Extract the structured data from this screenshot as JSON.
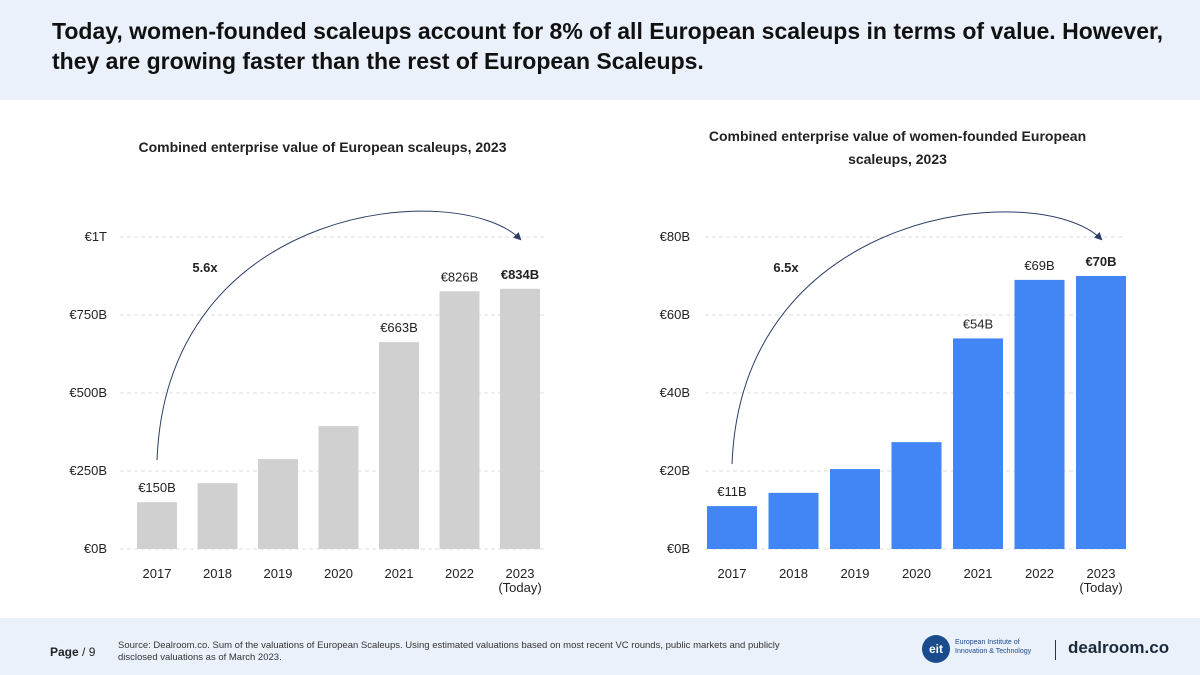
{
  "header": {
    "title": "Today, women-founded scaleups account for 8% of all European scaleups in terms of value. However, they are growing faster than the rest of European Scaleups."
  },
  "chart_data": [
    {
      "type": "bar",
      "title": "Combined enterprise value of European scaleups, 2023",
      "categories": [
        "2017",
        "2018",
        "2019",
        "2020",
        "2021",
        "2022",
        "2023"
      ],
      "category_note": "(Today)",
      "values": [
        150,
        211,
        288,
        394,
        663,
        826,
        834
      ],
      "value_labels": [
        "€150B",
        null,
        null,
        null,
        "€663B",
        "€826B",
        "€834B"
      ],
      "color": "#d0d0d0",
      "ylim": [
        0,
        1000
      ],
      "yticks": [
        {
          "value": 0,
          "label": "€0B"
        },
        {
          "value": 250,
          "label": "€250B"
        },
        {
          "value": 500,
          "label": "€500B"
        },
        {
          "value": 750,
          "label": "€750B"
        },
        {
          "value": 1000,
          "label": "€1T"
        }
      ],
      "grid": true,
      "annotation": "5.6x"
    },
    {
      "type": "bar",
      "title": "Combined enterprise value of women-founded European scaleups, 2023",
      "categories": [
        "2017",
        "2018",
        "2019",
        "2020",
        "2021",
        "2022",
        "2023"
      ],
      "category_note": "(Today)",
      "values": [
        11,
        14.4,
        20.5,
        27.4,
        54,
        69,
        70
      ],
      "value_labels": [
        "€11B",
        null,
        null,
        null,
        "€54B",
        "€69B",
        "€70B"
      ],
      "color": "#4285f4",
      "ylim": [
        0,
        80
      ],
      "yticks": [
        {
          "value": 0,
          "label": "€0B"
        },
        {
          "value": 20,
          "label": "€20B"
        },
        {
          "value": 40,
          "label": "€40B"
        },
        {
          "value": 60,
          "label": "€60B"
        },
        {
          "value": 80,
          "label": "€80B"
        }
      ],
      "grid": true,
      "annotation": "6.5x"
    }
  ],
  "footer": {
    "page_label": "Page",
    "page_number": "/ 9",
    "source": "Source: Dealroom.co. Sum of the valuations of European Scaleups. Using estimated valuations based on most recent VC rounds, public markets and publicly disclosed valuations as of March 2023.",
    "eit_mark": "eit",
    "eit_name": "European Institute of Innovation & Technology",
    "dealroom": "dealroom.co"
  }
}
